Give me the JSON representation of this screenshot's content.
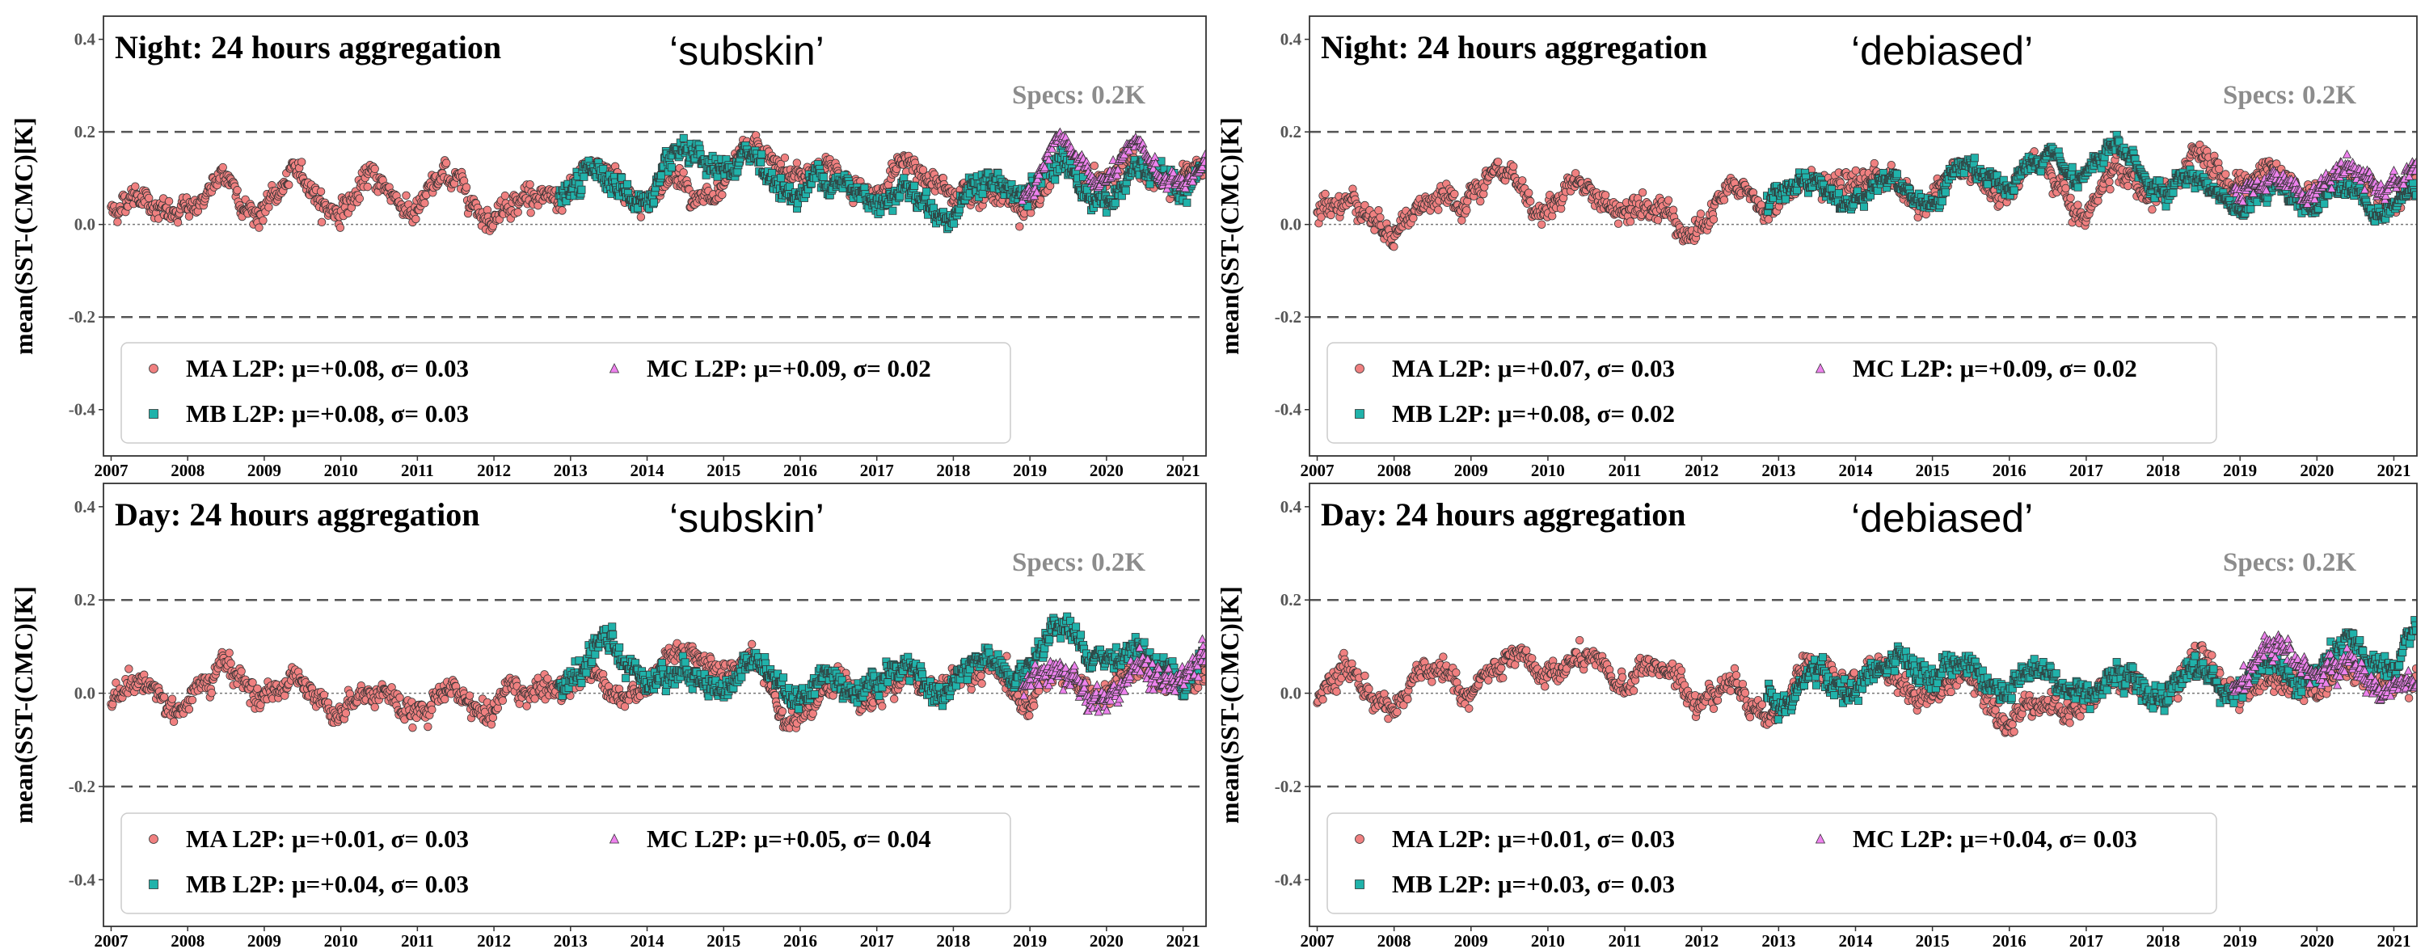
{
  "chart_data": [
    {
      "type": "scatter",
      "title": "Night: 24 hours aggregation",
      "tag": "‘subskin’",
      "annotation": "Specs: 0.2K",
      "ylabel": "mean(SST-(CMC)[K]",
      "ylim": [
        -0.5,
        0.45
      ],
      "yticks": [
        "0.4",
        "0.2",
        "0.0",
        "-0.2",
        "-0.4"
      ],
      "xlim": [
        2006.9,
        2021.3
      ],
      "xticks": [
        "2007",
        "2008",
        "2009",
        "2010",
        "2011",
        "2012",
        "2013",
        "2014",
        "2015",
        "2016",
        "2017",
        "2018",
        "2019",
        "2020",
        "2021"
      ],
      "reference_lines": [
        0.2,
        -0.2
      ],
      "legend": {
        "position": "bottom"
      },
      "series": [
        {
          "name": "MA L2P: μ=+0.08, σ= 0.03",
          "start": 2007.0,
          "end": 2021.3,
          "mean": 0.08,
          "sd": 0.03,
          "trend": 0.004
        },
        {
          "name": "MB L2P: μ=+0.08, σ= 0.03",
          "start": 2012.85,
          "end": 2021.3,
          "mean": 0.08,
          "sd": 0.03,
          "trend": 0.0
        },
        {
          "name": "MC L2P: μ=+0.09, σ= 0.02",
          "start": 2018.9,
          "end": 2021.3,
          "mean": 0.09,
          "sd": 0.02,
          "trend": 0.0
        }
      ]
    },
    {
      "type": "scatter",
      "title": "Night: 24 hours aggregation",
      "tag": "‘debiased’",
      "annotation": "Specs: 0.2K",
      "ylabel": "mean(SST-(CMC)[K]",
      "ylim": [
        -0.5,
        0.45
      ],
      "yticks": [
        "0.4",
        "0.2",
        "0.0",
        "-0.2",
        "-0.4"
      ],
      "xlim": [
        2006.9,
        2021.3
      ],
      "xticks": [
        "2007",
        "2008",
        "2009",
        "2010",
        "2011",
        "2012",
        "2013",
        "2014",
        "2015",
        "2016",
        "2017",
        "2018",
        "2019",
        "2020",
        "2021"
      ],
      "reference_lines": [
        0.2,
        -0.2
      ],
      "legend": {
        "position": "bottom"
      },
      "series": [
        {
          "name": "MA L2P: μ=+0.07, σ= 0.03",
          "start": 2007.0,
          "end": 2021.3,
          "mean": 0.07,
          "sd": 0.03,
          "trend": 0.004
        },
        {
          "name": "MB L2P: μ=+0.08, σ= 0.02",
          "start": 2012.85,
          "end": 2021.3,
          "mean": 0.08,
          "sd": 0.02,
          "trend": 0.0
        },
        {
          "name": "MC L2P: μ=+0.09, σ= 0.02",
          "start": 2018.9,
          "end": 2021.3,
          "mean": 0.09,
          "sd": 0.02,
          "trend": 0.0
        }
      ]
    },
    {
      "type": "scatter",
      "title": "Day: 24 hours aggregation",
      "tag": "‘subskin’",
      "annotation": "Specs: 0.2K",
      "ylabel": "mean(SST-(CMC)[K]",
      "ylim": [
        -0.5,
        0.45
      ],
      "yticks": [
        "0.4",
        "0.2",
        "0.0",
        "-0.2",
        "-0.4"
      ],
      "xlim": [
        2006.9,
        2021.3
      ],
      "xticks": [
        "2007",
        "2008",
        "2009",
        "2010",
        "2011",
        "2012",
        "2013",
        "2014",
        "2015",
        "2016",
        "2017",
        "2018",
        "2019",
        "2020",
        "2021"
      ],
      "reference_lines": [
        0.2,
        -0.2
      ],
      "legend": {
        "position": "bottom"
      },
      "series": [
        {
          "name": "MA L2P: μ=+0.01, σ= 0.03",
          "start": 2007.0,
          "end": 2021.3,
          "mean": 0.01,
          "sd": 0.03,
          "trend": 0.0
        },
        {
          "name": "MB L2P: μ=+0.04, σ= 0.03",
          "start": 2012.85,
          "end": 2021.3,
          "mean": 0.04,
          "sd": 0.03,
          "trend": 0.003
        },
        {
          "name": "MC L2P: μ=+0.05, σ= 0.04",
          "start": 2018.9,
          "end": 2021.3,
          "mean": 0.05,
          "sd": 0.04,
          "trend": 0.0
        }
      ]
    },
    {
      "type": "scatter",
      "title": "Day: 24 hours aggregation",
      "tag": "‘debiased’",
      "annotation": "Specs: 0.2K",
      "ylabel": "mean(SST-(CMC)[K]",
      "ylim": [
        -0.5,
        0.45
      ],
      "yticks": [
        "0.4",
        "0.2",
        "0.0",
        "-0.2",
        "-0.4"
      ],
      "xlim": [
        2006.9,
        2021.3
      ],
      "xticks": [
        "2007",
        "2008",
        "2009",
        "2010",
        "2011",
        "2012",
        "2013",
        "2014",
        "2015",
        "2016",
        "2017",
        "2018",
        "2019",
        "2020",
        "2021"
      ],
      "reference_lines": [
        0.2,
        -0.2
      ],
      "legend": {
        "position": "bottom"
      },
      "series": [
        {
          "name": "MA L2P: μ=+0.01, σ= 0.03",
          "start": 2007.0,
          "end": 2021.3,
          "mean": 0.01,
          "sd": 0.03,
          "trend": 0.0
        },
        {
          "name": "MB L2P: μ=+0.03, σ= 0.03",
          "start": 2012.85,
          "end": 2021.3,
          "mean": 0.03,
          "sd": 0.03,
          "trend": 0.003
        },
        {
          "name": "MC L2P: μ=+0.04, σ= 0.03",
          "start": 2018.9,
          "end": 2021.3,
          "mean": 0.04,
          "sd": 0.03,
          "trend": 0.0
        }
      ]
    }
  ],
  "colors": {
    "MA": "#f08080",
    "MB": "#20b2aa",
    "MC": "#ee82ee",
    "edge": "#333333",
    "ref": "#555555",
    "zero": "#777777"
  }
}
